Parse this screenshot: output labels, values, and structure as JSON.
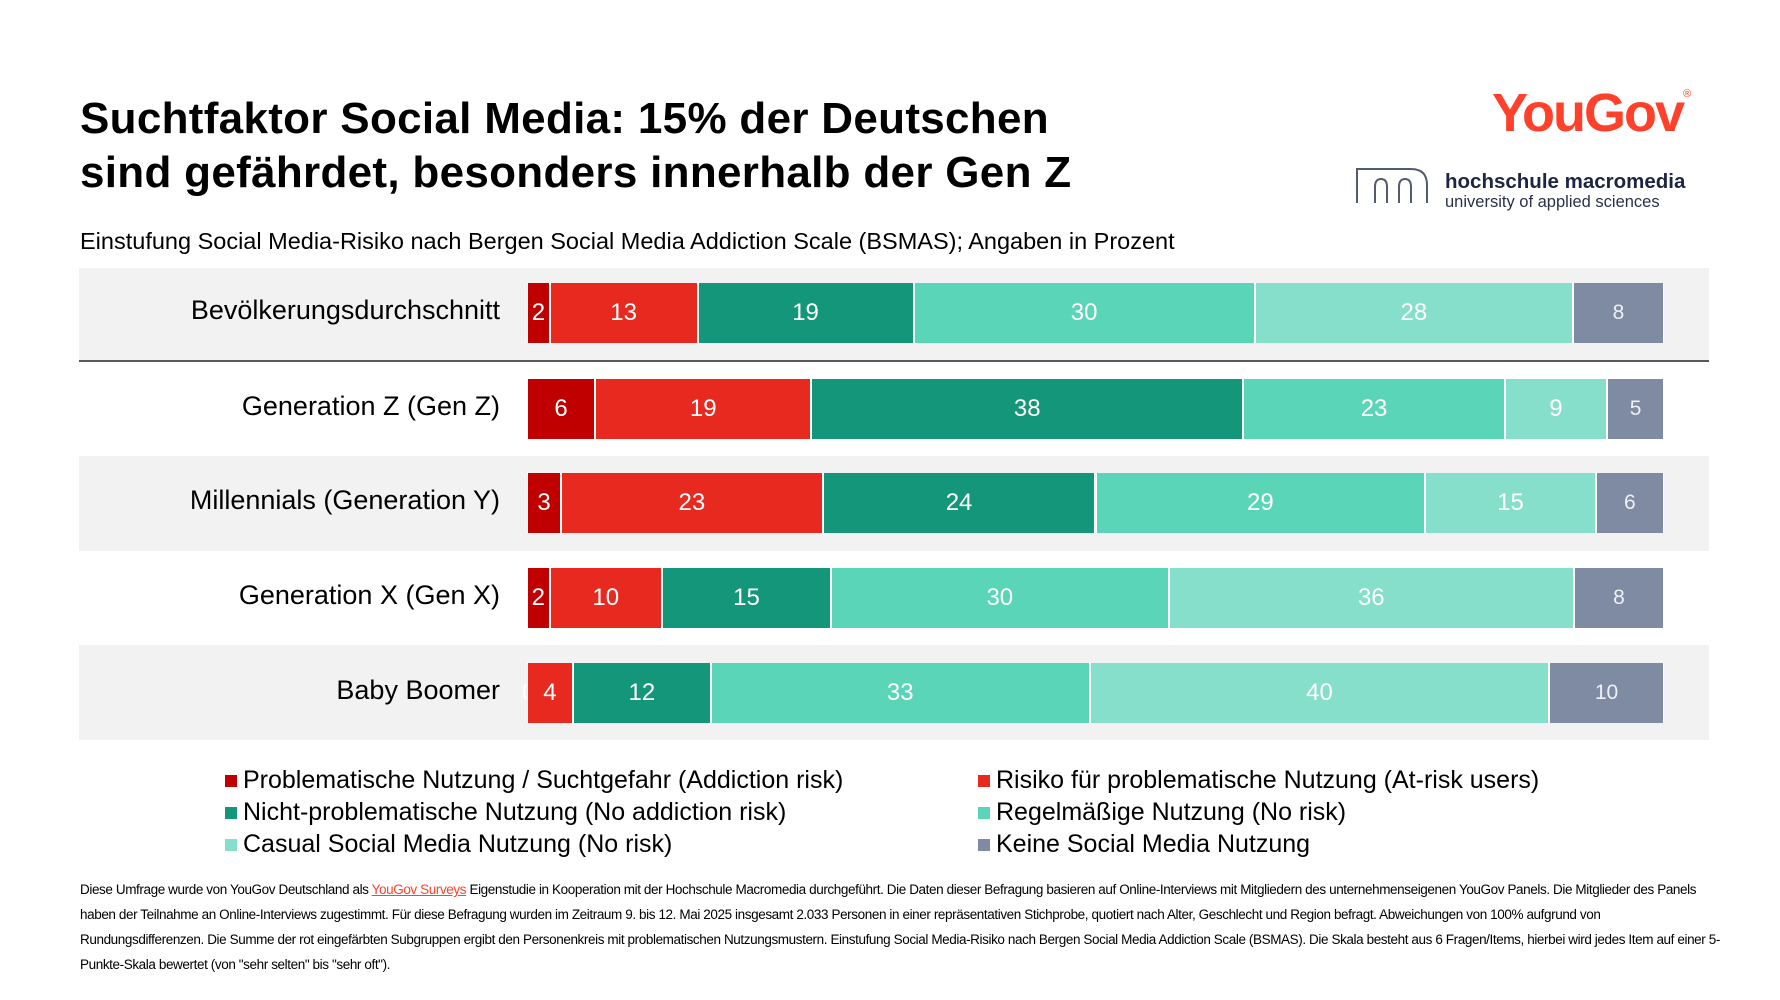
{
  "header": {
    "title_line1": "Suchtfaktor Social Media: 15% der Deutschen",
    "title_line2": "sind gefährdet, besonders innerhalb der Gen Z",
    "subtitle": "Einstufung Social Media-Risiko nach Bergen Social Media Addiction Scale (BSMAS); Angaben in Prozent"
  },
  "logos": {
    "yougov": "YouGov",
    "yougov_mark": "®",
    "hm_name": "hochschule macromedia",
    "hm_sub": "university of applied sciences"
  },
  "chart_data": {
    "type": "bar",
    "orientation": "horizontal",
    "stacked": true,
    "categories": [
      "Bevölkerungsdurchschnitt",
      "Generation Z (Gen Z)",
      "Millennials (Generation Y)",
      "Generation X (Gen X)",
      "Baby Boomer"
    ],
    "series": [
      {
        "name": "Problematische Nutzung / Suchtgefahr (Addiction risk)",
        "color": "#C00000",
        "values": [
          2,
          6,
          3,
          2,
          0
        ]
      },
      {
        "name": "Risiko für problematische Nutzung (At-risk users)",
        "color": "#E8291F",
        "values": [
          13,
          19,
          23,
          10,
          4
        ]
      },
      {
        "name": "Nicht-problematische Nutzung (No addiction risk)",
        "color": "#14967A",
        "values": [
          19,
          38,
          24,
          15,
          12
        ]
      },
      {
        "name": "Regelmäßige Nutzung (No risk)",
        "color": "#5AD5B8",
        "values": [
          30,
          23,
          29,
          30,
          33
        ]
      },
      {
        "name": "Casual Social Media Nutzung (No risk)",
        "color": "#85DFCA",
        "values": [
          28,
          9,
          15,
          36,
          40
        ]
      },
      {
        "name": "Keine Social Media Nutzung",
        "color": "#7F8AA3",
        "values": [
          8,
          5,
          6,
          8,
          10
        ]
      }
    ],
    "legend_order": [
      0,
      1,
      2,
      3,
      4,
      5
    ],
    "legend_placement": "bottom",
    "grid": false,
    "data_labels": true
  },
  "footer": {
    "part1": "Diese Umfrage wurde von YouGov Deutschland als ",
    "link": "YouGov Surveys",
    "part2": " Eigenstudie in Kooperation mit der Hochschule Macromedia durchgeführt. Die Daten dieser Befragung basieren auf Online-Interviews mit Mitgliedern des unternehmenseigenen YouGov Panels. Die Mitglieder des Panels haben der Teilnahme an Online-Interviews zugestimmt. Für diese Befragung wurden im Zeitraum 9. bis 12. Mai 2025 insgesamt 2.033 Personen in einer repräsentativen Stichprobe, quotiert nach Alter, Geschlecht und Region befragt. Abweichungen von 100% aufgrund von Rundungsdifferenzen. Die Summe der rot eingefärbten Subgruppen ergibt den Personenkreis mit problematischen Nutzungsmustern. Einstufung Social Media-Risiko nach Bergen Social Media Addiction Scale (BSMAS). Die Skala besteht aus 6 Fragen/Items, hierbei wird jedes Item auf einer 5-Punkte-Skala bewertet (von \"sehr selten\" bis \"sehr oft\")."
  }
}
